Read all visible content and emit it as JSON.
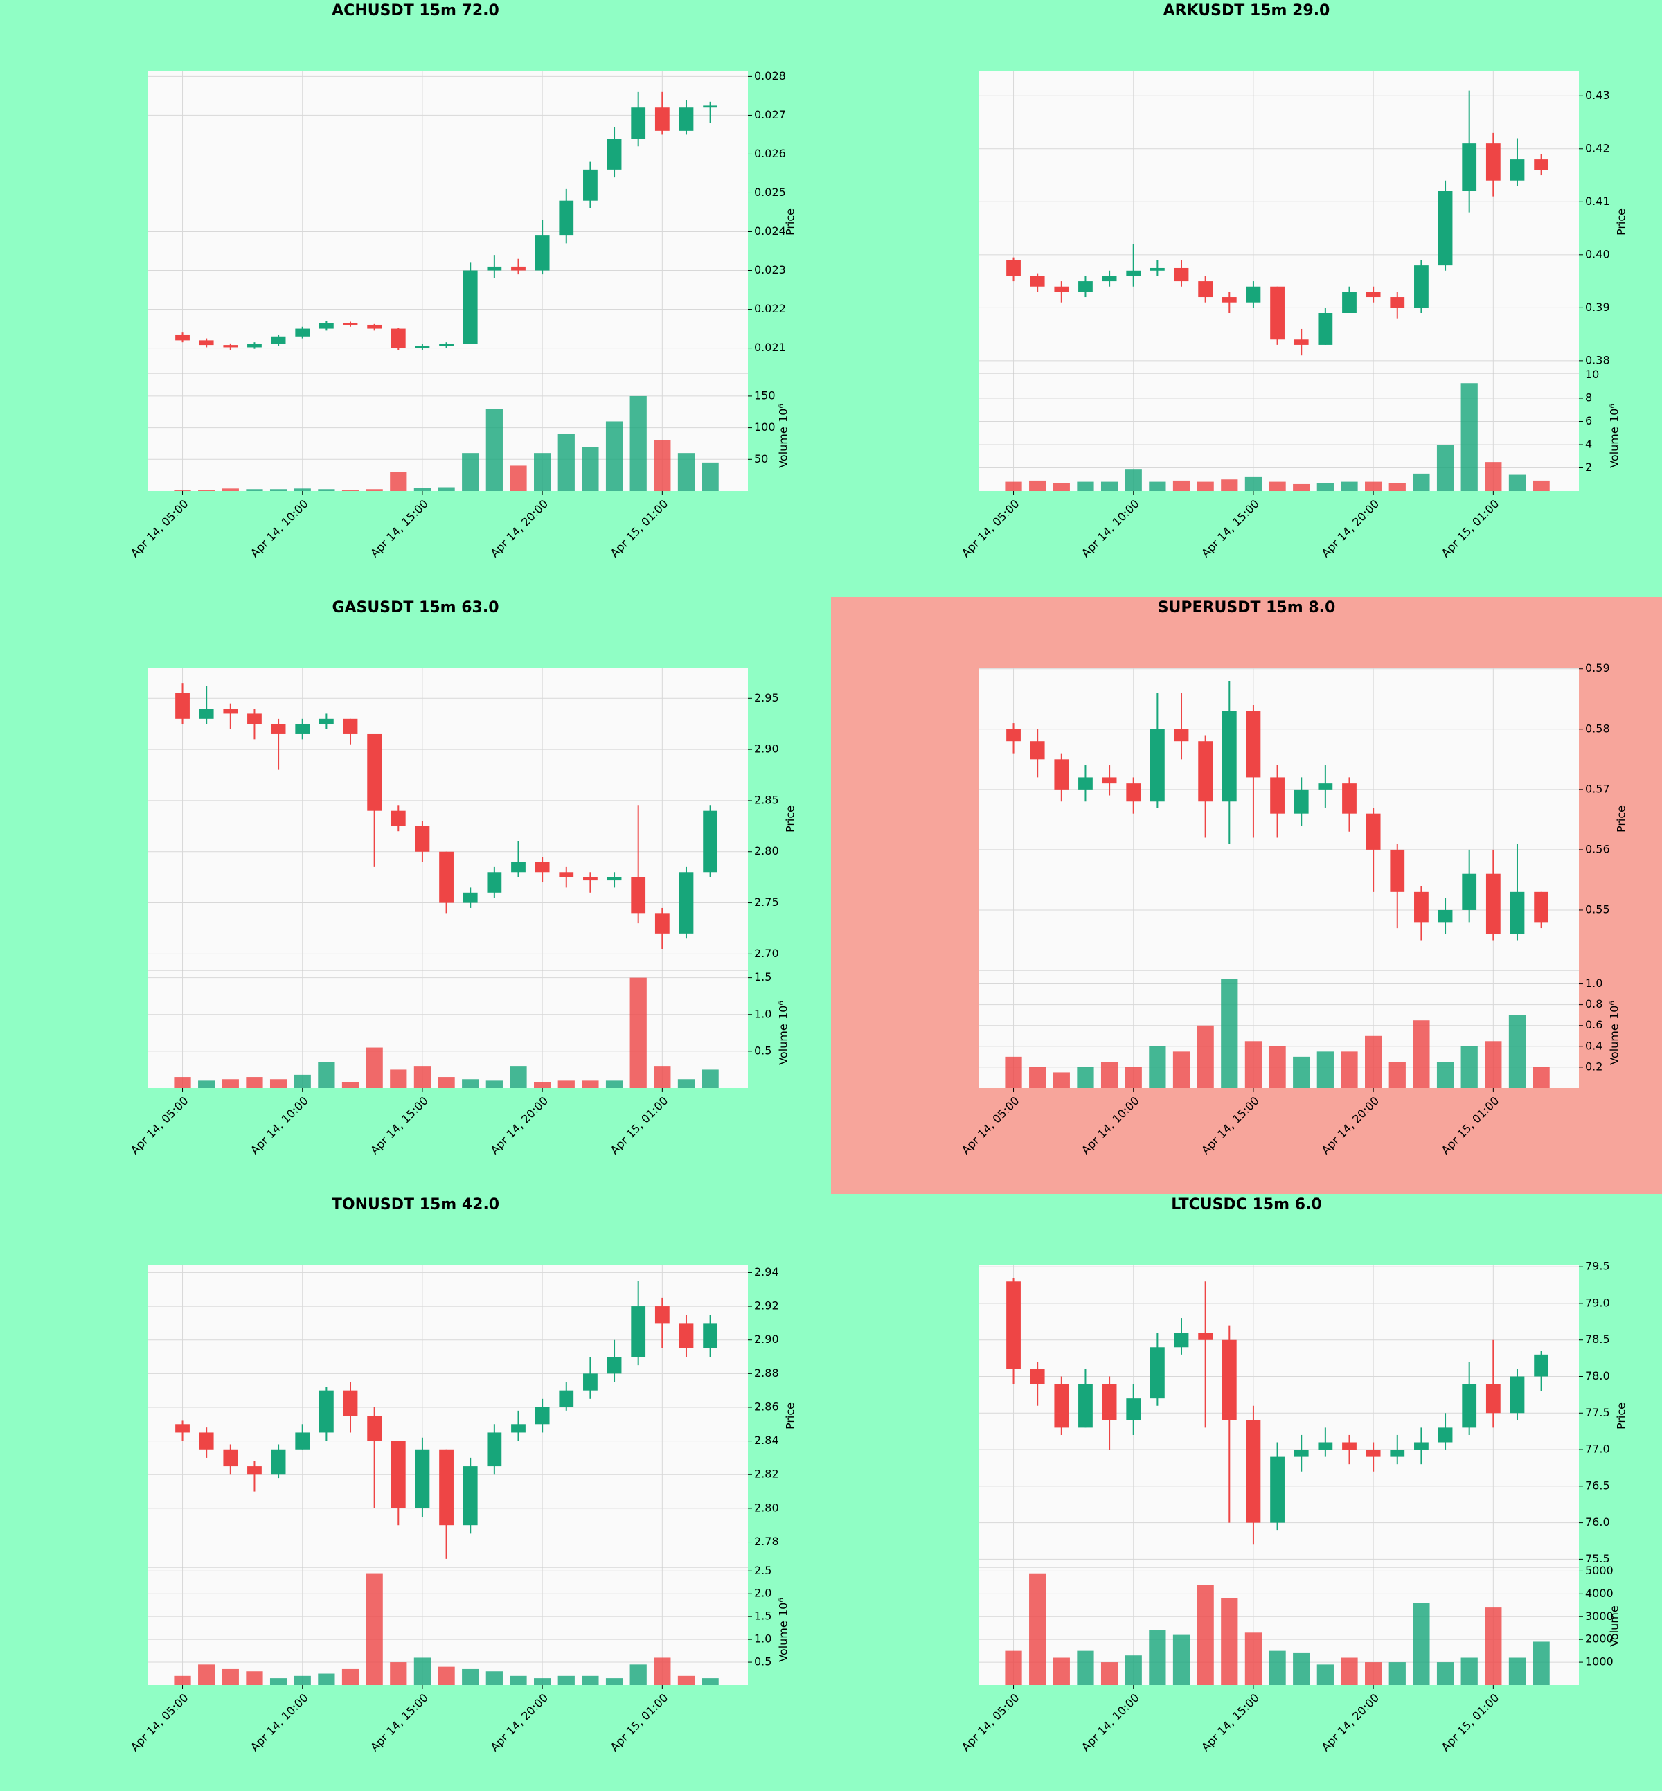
{
  "chart_data": [
    {
      "type": "candlestick",
      "title": "ACHUSDT 15m 72.0",
      "background": "#90fec5",
      "plot_color": "#fafafa",
      "up_color": "#17a67a",
      "down_color": "#ee4545",
      "open": [
        0.02135,
        0.0212,
        0.02108,
        0.02102,
        0.0211,
        0.0213,
        0.0215,
        0.02165,
        0.0216,
        0.0215,
        0.021,
        0.02105,
        0.0211,
        0.023,
        0.0231,
        0.023,
        0.0239,
        0.0248,
        0.0256,
        0.0264,
        0.0272,
        0.0266,
        0.0272
      ],
      "high": [
        0.0214,
        0.02125,
        0.02112,
        0.02115,
        0.02135,
        0.02155,
        0.0217,
        0.02168,
        0.02162,
        0.02152,
        0.0211,
        0.02115,
        0.0232,
        0.0234,
        0.0233,
        0.0243,
        0.0251,
        0.0258,
        0.0267,
        0.0276,
        0.0276,
        0.0274,
        0.02735
      ],
      "low": [
        0.02115,
        0.02102,
        0.02095,
        0.02098,
        0.02105,
        0.02125,
        0.02145,
        0.02155,
        0.02145,
        0.02095,
        0.02095,
        0.021,
        0.0211,
        0.0228,
        0.0229,
        0.0229,
        0.0237,
        0.0246,
        0.0254,
        0.0262,
        0.0265,
        0.0265,
        0.0268
      ],
      "close": [
        0.0212,
        0.02108,
        0.02102,
        0.0211,
        0.0213,
        0.0215,
        0.02165,
        0.0216,
        0.0215,
        0.021,
        0.02105,
        0.0211,
        0.023,
        0.0231,
        0.023,
        0.0239,
        0.0248,
        0.0256,
        0.0264,
        0.0272,
        0.0266,
        0.0272,
        0.02725
      ],
      "volume": [
        2,
        2,
        4,
        3,
        3,
        4,
        3,
        2,
        3,
        30,
        5,
        6,
        60,
        130,
        40,
        60,
        90,
        70,
        110,
        150,
        80,
        60,
        45
      ],
      "xlim": [
        -1.43,
        23.57
      ],
      "xticks": [
        {
          "value": 0,
          "label": "Apr 14, 05:00"
        },
        {
          "value": 5,
          "label": "Apr 14, 10:00"
        },
        {
          "value": 10,
          "label": "Apr 14, 15:00"
        },
        {
          "value": 15,
          "label": "Apr 14, 20:00"
        },
        {
          "value": 20,
          "label": "Apr 15, 01:00"
        }
      ],
      "ylim": [
        0.02035,
        0.02815
      ],
      "yticks": [
        0.021,
        0.022,
        0.023,
        0.024,
        0.025,
        0.026,
        0.027,
        0.028
      ],
      "ylabel": "Price",
      "vlim": [
        0,
        186
      ],
      "vticks": [
        50,
        100,
        150
      ],
      "volume_label": "Volume",
      "volume_scale": "10⁶"
    },
    {
      "type": "candlestick",
      "title": "ARKUSDT 15m 29.0",
      "background": "#90fec5",
      "plot_color": "#fafafa",
      "up_color": "#17a67a",
      "down_color": "#ee4545",
      "open": [
        0.399,
        0.396,
        0.394,
        0.393,
        0.395,
        0.396,
        0.397,
        0.3975,
        0.395,
        0.392,
        0.391,
        0.394,
        0.384,
        0.383,
        0.389,
        0.393,
        0.392,
        0.39,
        0.398,
        0.412,
        0.421,
        0.414,
        0.418
      ],
      "high": [
        0.3995,
        0.3965,
        0.395,
        0.396,
        0.397,
        0.402,
        0.399,
        0.399,
        0.396,
        0.393,
        0.395,
        0.394,
        0.386,
        0.39,
        0.394,
        0.394,
        0.393,
        0.399,
        0.414,
        0.431,
        0.423,
        0.422,
        0.419
      ],
      "low": [
        0.395,
        0.393,
        0.391,
        0.392,
        0.394,
        0.394,
        0.396,
        0.394,
        0.391,
        0.389,
        0.39,
        0.383,
        0.381,
        0.383,
        0.389,
        0.391,
        0.388,
        0.389,
        0.397,
        0.408,
        0.411,
        0.413,
        0.415
      ],
      "close": [
        0.396,
        0.394,
        0.393,
        0.395,
        0.396,
        0.397,
        0.3975,
        0.395,
        0.392,
        0.391,
        0.394,
        0.384,
        0.383,
        0.389,
        0.393,
        0.392,
        0.39,
        0.398,
        0.412,
        0.421,
        0.414,
        0.418,
        0.416
      ],
      "volume": [
        0.8,
        0.9,
        0.7,
        0.8,
        0.8,
        1.9,
        0.8,
        0.9,
        0.8,
        1.0,
        1.2,
        0.8,
        0.6,
        0.7,
        0.8,
        0.8,
        0.7,
        1.5,
        4.0,
        9.3,
        2.5,
        1.4,
        0.9
      ],
      "xlim": [
        -1.43,
        23.57
      ],
      "xticks": [
        {
          "value": 0,
          "label": "Apr 14, 05:00"
        },
        {
          "value": 5,
          "label": "Apr 14, 10:00"
        },
        {
          "value": 10,
          "label": "Apr 14, 15:00"
        },
        {
          "value": 15,
          "label": "Apr 14, 20:00"
        },
        {
          "value": 20,
          "label": "Apr 15, 01:00"
        }
      ],
      "ylim": [
        0.37763,
        0.43474
      ],
      "yticks": [
        0.38,
        0.39,
        {
          "value": 0.4,
          "label": "0.40"
        },
        0.41,
        0.42,
        0.43
      ],
      "ylabel": "Price",
      "vlim": [
        0,
        10.15
      ],
      "vticks": [
        2,
        4,
        6,
        8,
        10
      ],
      "volume_label": "Volume",
      "volume_scale": "10⁶"
    },
    {
      "type": "candlestick",
      "title": "GASUSDT 15m 63.0",
      "background": "#90fec5",
      "plot_color": "#fafafa",
      "up_color": "#17a67a",
      "down_color": "#ee4545",
      "open": [
        2.955,
        2.93,
        2.94,
        2.935,
        2.925,
        2.915,
        2.925,
        2.93,
        2.915,
        2.84,
        2.825,
        2.8,
        2.75,
        2.76,
        2.78,
        2.79,
        2.78,
        2.775,
        2.772,
        2.775,
        2.74,
        2.72,
        2.78
      ],
      "high": [
        2.965,
        2.962,
        2.945,
        2.94,
        2.93,
        2.93,
        2.935,
        2.93,
        2.915,
        2.845,
        2.83,
        2.8,
        2.765,
        2.785,
        2.81,
        2.795,
        2.785,
        2.78,
        2.78,
        2.845,
        2.745,
        2.785,
        2.845
      ],
      "low": [
        2.925,
        2.925,
        2.92,
        2.91,
        2.88,
        2.91,
        2.92,
        2.905,
        2.785,
        2.82,
        2.79,
        2.74,
        2.745,
        2.755,
        2.775,
        2.77,
        2.765,
        2.76,
        2.765,
        2.73,
        2.705,
        2.715,
        2.775
      ],
      "close": [
        2.93,
        2.94,
        2.935,
        2.925,
        2.915,
        2.925,
        2.93,
        2.915,
        2.84,
        2.825,
        2.8,
        2.75,
        2.76,
        2.78,
        2.79,
        2.78,
        2.775,
        2.772,
        2.775,
        2.74,
        2.72,
        2.78,
        2.84
      ],
      "volume": [
        0.15,
        0.1,
        0.12,
        0.15,
        0.12,
        0.18,
        0.35,
        0.08,
        0.55,
        0.25,
        0.3,
        0.15,
        0.12,
        0.1,
        0.3,
        0.08,
        0.1,
        0.1,
        0.1,
        1.5,
        0.3,
        0.12,
        0.25
      ],
      "xlim": [
        -1.43,
        23.57
      ],
      "xticks": [
        {
          "value": 0,
          "label": "Apr 14, 05:00"
        },
        {
          "value": 5,
          "label": "Apr 14, 10:00"
        },
        {
          "value": 10,
          "label": "Apr 14, 15:00"
        },
        {
          "value": 15,
          "label": "Apr 14, 20:00"
        },
        {
          "value": 20,
          "label": "Apr 15, 01:00"
        }
      ],
      "ylim": [
        2.684,
        2.98
      ],
      "yticks": [
        {
          "value": 2.7,
          "label": "2.70"
        },
        2.75,
        {
          "value": 2.8,
          "label": "2.80"
        },
        2.85,
        {
          "value": 2.9,
          "label": "2.90"
        },
        2.95
      ],
      "ylabel": "Price",
      "vlim": [
        0,
        1.6
      ],
      "vticks": [
        0.5,
        {
          "value": 1,
          "label": "1.0"
        },
        1.5
      ],
      "volume_label": "Volume",
      "volume_scale": "10⁶"
    },
    {
      "type": "candlestick",
      "title": "SUPERUSDT 15m 8.0",
      "background": "#f7a59b",
      "plot_color": "#fafafa",
      "up_color": "#17a67a",
      "down_color": "#ee4545",
      "open": [
        0.58,
        0.578,
        0.575,
        0.57,
        0.572,
        0.571,
        0.568,
        0.58,
        0.578,
        0.568,
        0.583,
        0.572,
        0.566,
        0.57,
        0.571,
        0.566,
        0.56,
        0.553,
        0.548,
        0.55,
        0.556,
        0.546,
        0.553
      ],
      "high": [
        0.581,
        0.58,
        0.576,
        0.574,
        0.574,
        0.572,
        0.586,
        0.586,
        0.579,
        0.588,
        0.584,
        0.574,
        0.572,
        0.574,
        0.572,
        0.567,
        0.561,
        0.554,
        0.552,
        0.56,
        0.56,
        0.561,
        0.553
      ],
      "low": [
        0.576,
        0.572,
        0.568,
        0.568,
        0.569,
        0.566,
        0.567,
        0.575,
        0.562,
        0.561,
        0.562,
        0.562,
        0.564,
        0.567,
        0.563,
        0.553,
        0.547,
        0.545,
        0.546,
        0.548,
        0.545,
        0.545,
        0.547
      ],
      "close": [
        0.578,
        0.575,
        0.57,
        0.572,
        0.571,
        0.568,
        0.58,
        0.578,
        0.568,
        0.583,
        0.572,
        0.566,
        0.57,
        0.571,
        0.566,
        0.56,
        0.553,
        0.548,
        0.55,
        0.556,
        0.546,
        0.553,
        0.548
      ],
      "volume": [
        0.3,
        0.2,
        0.15,
        0.2,
        0.25,
        0.2,
        0.4,
        0.35,
        0.6,
        1.05,
        0.45,
        0.4,
        0.3,
        0.35,
        0.35,
        0.5,
        0.25,
        0.65,
        0.25,
        0.4,
        0.45,
        0.7,
        0.2
      ],
      "xlim": [
        -1.43,
        23.57
      ],
      "xticks": [
        {
          "value": 0,
          "label": "Apr 14, 05:00"
        },
        {
          "value": 5,
          "label": "Apr 14, 10:00"
        },
        {
          "value": 10,
          "label": "Apr 14, 15:00"
        },
        {
          "value": 15,
          "label": "Apr 14, 20:00"
        },
        {
          "value": 20,
          "label": "Apr 15, 01:00"
        }
      ],
      "ylim": [
        0.54,
        0.5902
      ],
      "yticks": [
        0.55,
        0.56,
        0.57,
        0.58,
        0.59
      ],
      "ylabel": "Price",
      "vlim": [
        0,
        1.13
      ],
      "vticks": [
        0.2,
        0.4,
        0.6,
        0.8,
        {
          "value": 1,
          "label": "1.0"
        }
      ],
      "volume_label": "Volume",
      "volume_scale": "10⁶"
    },
    {
      "type": "candlestick",
      "title": "TONUSDT 15m 42.0",
      "background": "#90fec5",
      "plot_color": "#fafafa",
      "up_color": "#17a67a",
      "down_color": "#ee4545",
      "open": [
        2.85,
        2.845,
        2.835,
        2.825,
        2.82,
        2.835,
        2.845,
        2.87,
        2.855,
        2.84,
        2.8,
        2.835,
        2.79,
        2.825,
        2.845,
        2.85,
        2.86,
        2.87,
        2.88,
        2.89,
        2.92,
        2.91,
        2.895
      ],
      "high": [
        2.852,
        2.848,
        2.838,
        2.828,
        2.838,
        2.85,
        2.872,
        2.875,
        2.86,
        2.84,
        2.842,
        2.835,
        2.83,
        2.85,
        2.858,
        2.865,
        2.875,
        2.89,
        2.9,
        2.935,
        2.925,
        2.915,
        2.915
      ],
      "low": [
        2.84,
        2.83,
        2.82,
        2.81,
        2.818,
        2.835,
        2.84,
        2.845,
        2.8,
        2.79,
        2.795,
        2.77,
        2.785,
        2.82,
        2.84,
        2.845,
        2.858,
        2.865,
        2.875,
        2.885,
        2.895,
        2.89,
        2.89
      ],
      "close": [
        2.845,
        2.835,
        2.825,
        2.82,
        2.835,
        2.845,
        2.87,
        2.855,
        2.84,
        2.8,
        2.835,
        2.79,
        2.825,
        2.845,
        2.85,
        2.86,
        2.87,
        2.88,
        2.89,
        2.92,
        2.91,
        2.895,
        2.91
      ],
      "volume": [
        0.2,
        0.45,
        0.35,
        0.3,
        0.15,
        0.2,
        0.25,
        0.35,
        2.45,
        0.5,
        0.6,
        0.4,
        0.35,
        0.3,
        0.2,
        0.15,
        0.2,
        0.2,
        0.15,
        0.45,
        0.6,
        0.2,
        0.15
      ],
      "xlim": [
        -1.43,
        23.57
      ],
      "xticks": [
        {
          "value": 0,
          "label": "Apr 14, 05:00"
        },
        {
          "value": 5,
          "label": "Apr 14, 10:00"
        },
        {
          "value": 10,
          "label": "Apr 14, 15:00"
        },
        {
          "value": 15,
          "label": "Apr 14, 20:00"
        },
        {
          "value": 20,
          "label": "Apr 15, 01:00"
        }
      ],
      "ylim": [
        2.765,
        2.9447
      ],
      "yticks": [
        2.78,
        {
          "value": 2.8,
          "label": "2.80"
        },
        2.82,
        2.84,
        2.86,
        2.88,
        {
          "value": 2.9,
          "label": "2.90"
        },
        2.92,
        2.94
      ],
      "ylabel": "Price",
      "vlim": [
        0,
        2.58
      ],
      "vticks": [
        0.5,
        {
          "value": 1,
          "label": "1.0"
        },
        1.5,
        {
          "value": 2,
          "label": "2.0"
        },
        2.5
      ],
      "volume_label": "Volume",
      "volume_scale": "10⁶"
    },
    {
      "type": "candlestick",
      "title": "LTCUSDC 15m 6.0",
      "background": "#90fec5",
      "plot_color": "#fafafa",
      "up_color": "#17a67a",
      "down_color": "#ee4545",
      "open": [
        79.3,
        78.1,
        77.9,
        77.3,
        77.9,
        77.4,
        77.7,
        78.4,
        78.6,
        78.5,
        77.4,
        76.0,
        76.9,
        77.0,
        77.1,
        77.0,
        76.9,
        77.0,
        77.1,
        77.3,
        77.9,
        77.5,
        78.0
      ],
      "high": [
        79.35,
        78.2,
        78.0,
        78.1,
        78.0,
        77.9,
        78.6,
        78.8,
        79.3,
        78.7,
        77.6,
        77.1,
        77.2,
        77.3,
        77.2,
        77.1,
        77.2,
        77.3,
        77.5,
        78.2,
        78.5,
        78.1,
        78.35
      ],
      "low": [
        77.9,
        77.6,
        77.2,
        77.3,
        77.0,
        77.2,
        77.6,
        78.3,
        77.3,
        76.0,
        75.7,
        75.9,
        76.7,
        76.9,
        76.8,
        76.7,
        76.8,
        76.8,
        77.0,
        77.2,
        77.3,
        77.4,
        77.8
      ],
      "close": [
        78.1,
        77.9,
        77.3,
        77.9,
        77.4,
        77.7,
        78.4,
        78.6,
        78.5,
        77.4,
        76.0,
        76.9,
        77.0,
        77.1,
        77.0,
        76.9,
        77.0,
        77.1,
        77.3,
        77.9,
        77.5,
        78.0,
        78.3
      ],
      "volume": [
        1500,
        4900,
        1200,
        1500,
        1000,
        1300,
        2400,
        2200,
        4400,
        3800,
        2300,
        1500,
        1400,
        900,
        1200,
        1000,
        1000,
        3600,
        1000,
        1200,
        3400,
        1200,
        1900
      ],
      "xlim": [
        -1.43,
        23.57
      ],
      "xticks": [
        {
          "value": 0,
          "label": "Apr 14, 05:00"
        },
        {
          "value": 5,
          "label": "Apr 14, 10:00"
        },
        {
          "value": 10,
          "label": "Apr 14, 15:00"
        },
        {
          "value": 15,
          "label": "Apr 14, 20:00"
        },
        {
          "value": 20,
          "label": "Apr 15, 01:00"
        }
      ],
      "ylim": [
        75.39,
        79.53
      ],
      "yticks": [
        75.5,
        {
          "value": 76,
          "label": "76.0"
        },
        76.5,
        {
          "value": 77,
          "label": "77.0"
        },
        77.5,
        {
          "value": 78,
          "label": "78.0"
        },
        78.5,
        {
          "value": 79,
          "label": "79.0"
        },
        79.5
      ],
      "ylabel": "Price",
      "vlim": [
        0,
        5165
      ],
      "vticks": [
        1000,
        2000,
        3000,
        4000,
        5000
      ],
      "volume_label": "Volume"
    }
  ]
}
